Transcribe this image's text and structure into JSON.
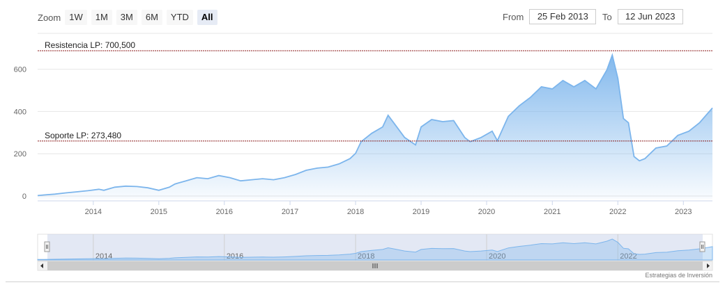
{
  "toolbar": {
    "zoom_label": "Zoom",
    "buttons": [
      "1W",
      "1M",
      "3M",
      "6M",
      "YTD",
      "All"
    ],
    "active_button": "All",
    "from_label": "From",
    "from_value": "25 Feb 2013",
    "to_label": "To",
    "to_value": "12 Jun 2023"
  },
  "credit": "Estrategias de Inversión",
  "colors": {
    "line": "#7cb5ec",
    "fill_top": "#7cb5ec",
    "plot_lines": "#8b1a1a",
    "navigator_mask": "#ccd6eb"
  },
  "chart_data": {
    "type": "area",
    "title": "",
    "xlabel": "",
    "ylabel": "",
    "ylim": [
      0,
      750
    ],
    "yticks": [
      0,
      200,
      400,
      600
    ],
    "xticks": [
      "2014",
      "2015",
      "2016",
      "2017",
      "2018",
      "2019",
      "2020",
      "2021",
      "2022",
      "2023"
    ],
    "navigator_ticks": [
      "2014",
      "2016",
      "2018",
      "2020",
      "2022"
    ],
    "xrange": [
      "2013-02-25",
      "2023-06-12"
    ],
    "plot_lines": [
      {
        "label": "Resistencia LP: 700,500",
        "value": 700.5
      },
      {
        "label": "Soporte LP: 273,480",
        "value": 273.48
      }
    ],
    "series": [
      {
        "x": [
          "2013-02-25",
          "2013-04",
          "2013-06",
          "2013-08",
          "2013-10",
          "2013-12",
          "2014-02",
          "2014-03",
          "2014-05",
          "2014-07",
          "2014-09",
          "2014-11",
          "2015-01",
          "2015-03",
          "2015-04",
          "2015-06",
          "2015-08",
          "2015-10",
          "2015-12",
          "2016-02",
          "2016-04",
          "2016-06",
          "2016-08",
          "2016-10",
          "2016-12",
          "2017-02",
          "2017-04",
          "2017-06",
          "2017-08",
          "2017-10",
          "2017-12",
          "2018-01",
          "2018-02",
          "2018-04",
          "2018-06",
          "2018-07",
          "2018-08",
          "2018-10",
          "2018-12",
          "2019-01",
          "2019-03",
          "2019-05",
          "2019-07",
          "2019-09",
          "2019-10",
          "2019-12",
          "2020-02",
          "2020-03",
          "2020-05",
          "2020-07",
          "2020-09",
          "2020-11",
          "2021-01",
          "2021-03",
          "2021-05",
          "2021-07",
          "2021-09",
          "2021-11",
          "2021-12",
          "2022-01",
          "2022-02",
          "2022-03",
          "2022-04",
          "2022-05",
          "2022-06",
          "2022-08",
          "2022-10",
          "2022-12",
          "2023-02",
          "2023-04",
          "2023-06-12"
        ],
        "values": [
          15,
          18,
          22,
          28,
          33,
          38,
          45,
          40,
          55,
          60,
          58,
          52,
          40,
          55,
          70,
          85,
          100,
          95,
          110,
          100,
          85,
          90,
          95,
          90,
          100,
          115,
          135,
          145,
          150,
          165,
          190,
          215,
          270,
          310,
          340,
          395,
          360,
          290,
          255,
          340,
          375,
          365,
          370,
          290,
          270,
          290,
          320,
          275,
          390,
          440,
          480,
          530,
          520,
          560,
          530,
          560,
          520,
          610,
          680,
          570,
          380,
          360,
          200,
          180,
          190,
          240,
          250,
          300,
          320,
          360,
          430
        ]
      }
    ]
  }
}
